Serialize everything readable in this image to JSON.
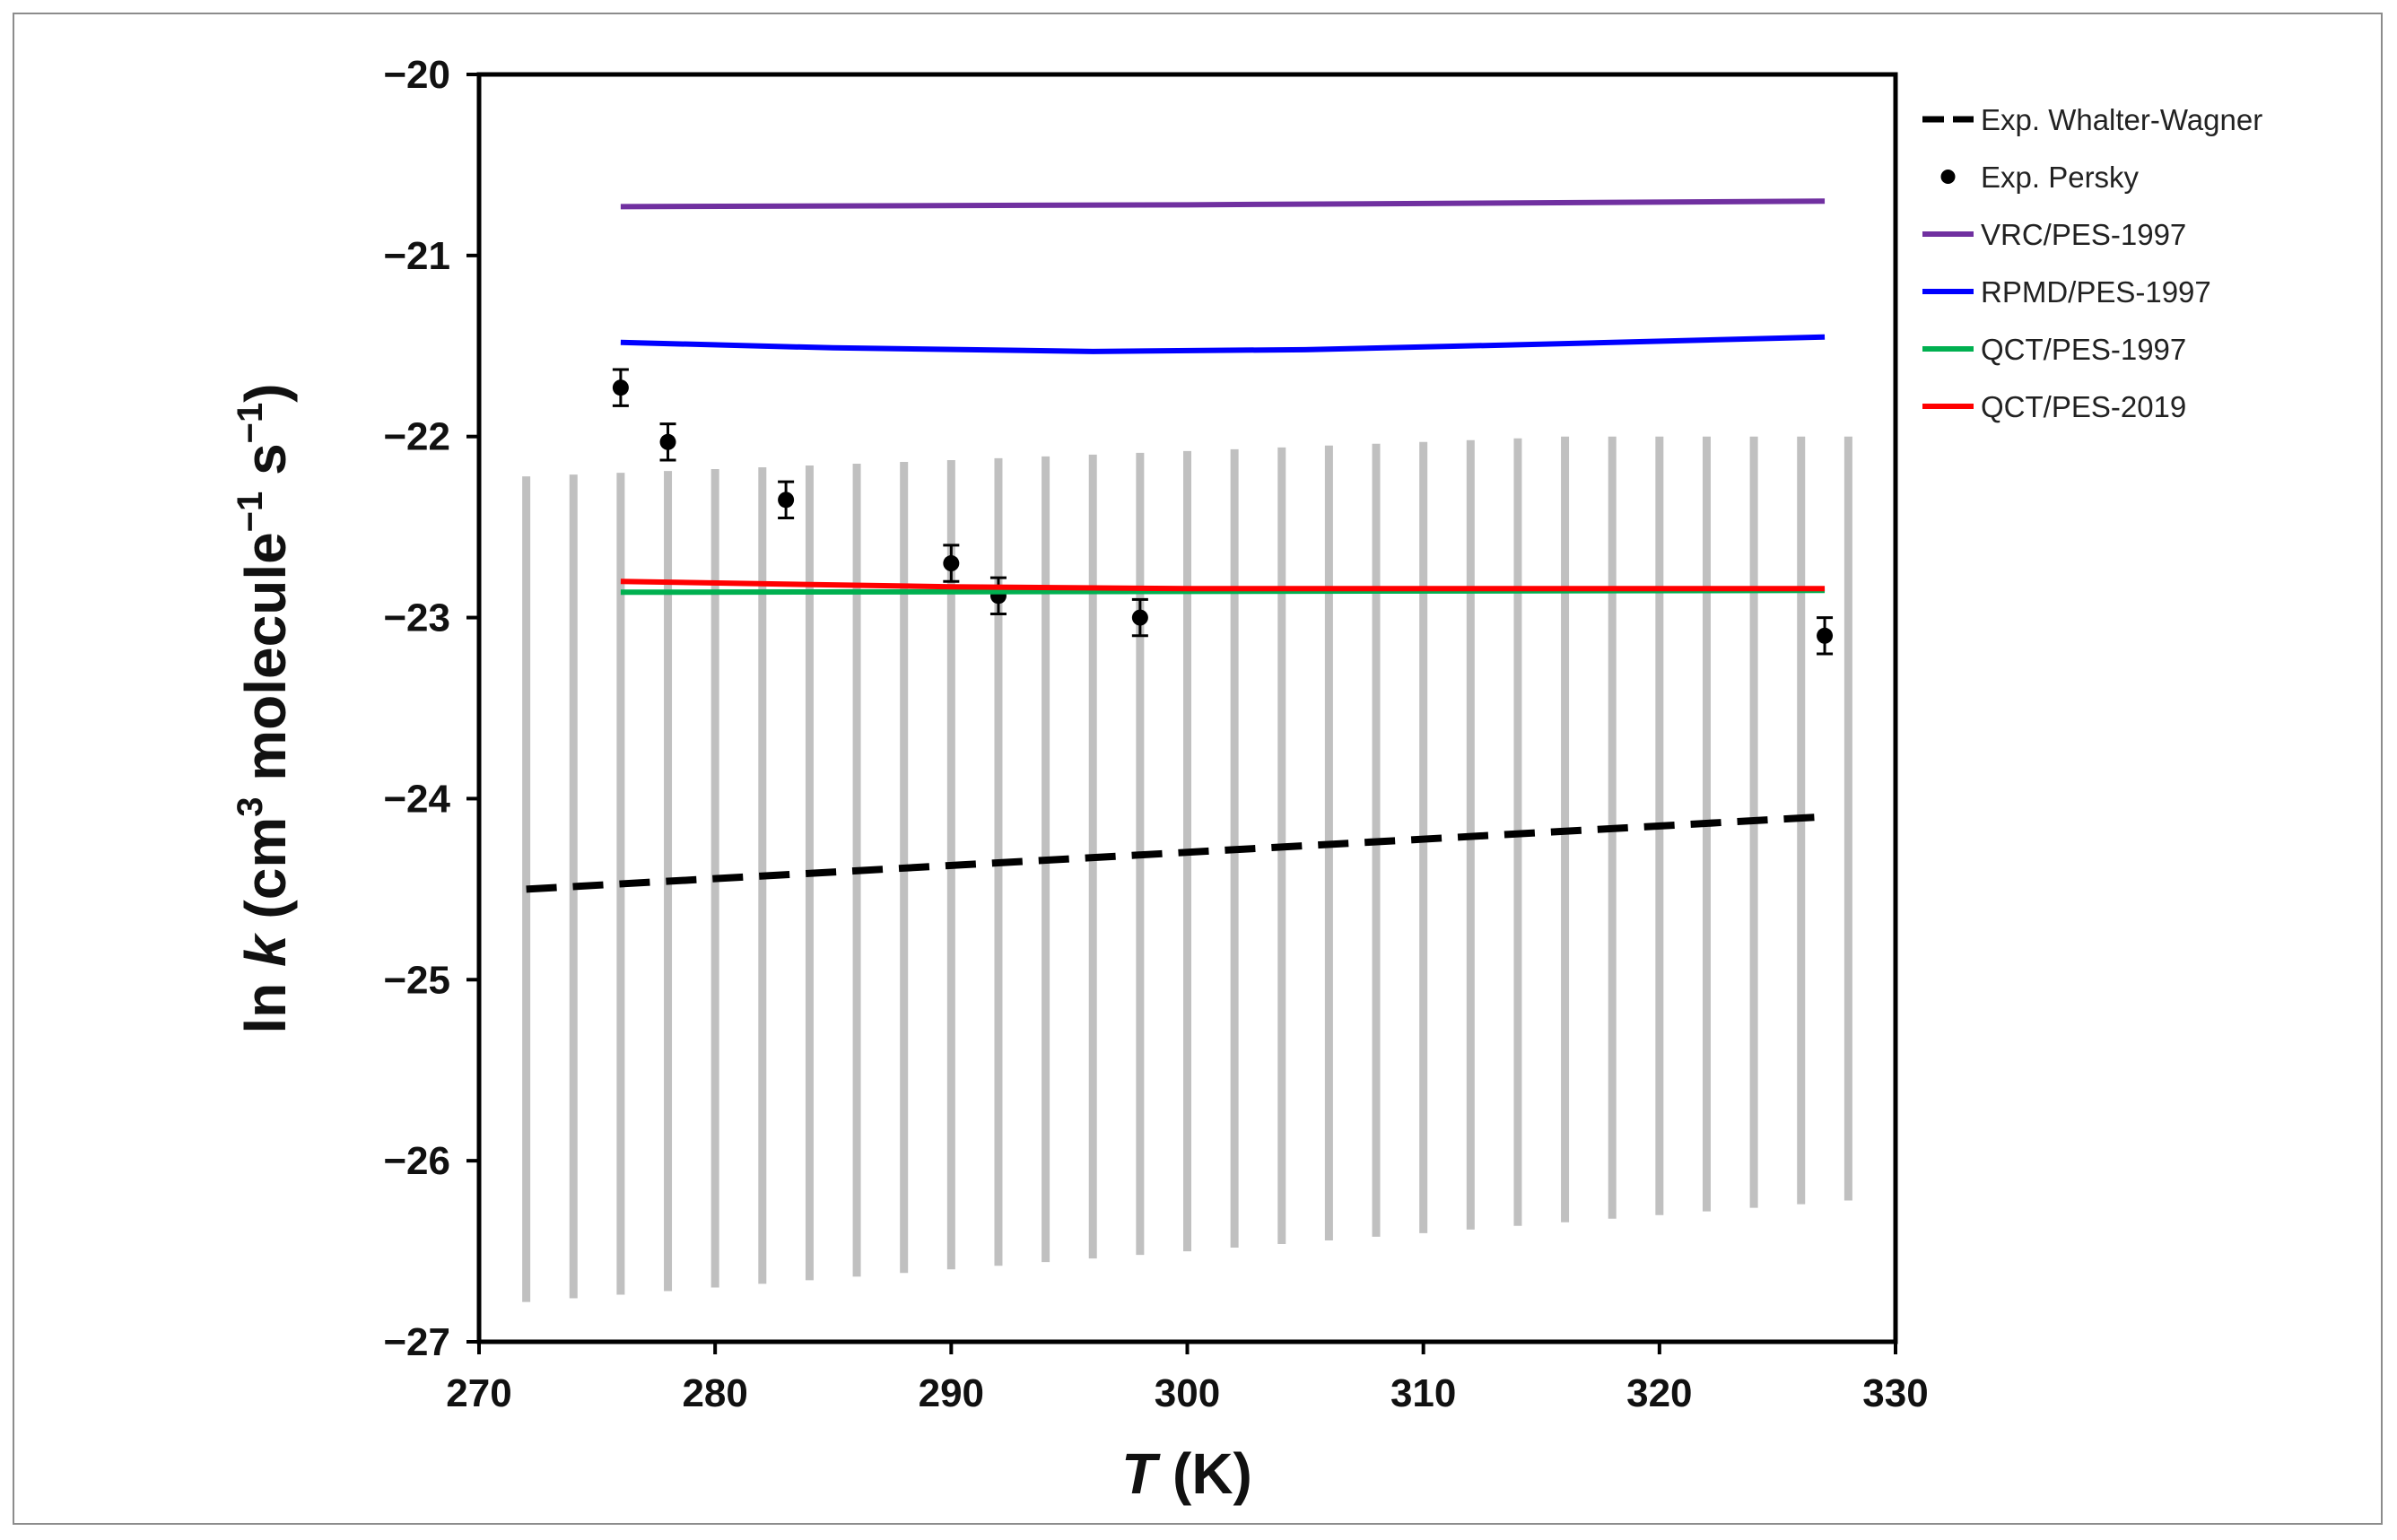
{
  "chart_data": {
    "type": "line",
    "title": "",
    "xlabel": {
      "italic": "T",
      "rest": " (K)"
    },
    "ylabel": {
      "pre": "ln ",
      "italic": "k",
      "mid1": " (cm",
      "sup1": "3",
      "mid2": " molecule",
      "sup2": "−1",
      "mid3": " s",
      "sup3": "−1",
      "post": ")"
    },
    "xlim": [
      270,
      330
    ],
    "ylim": [
      -27,
      -20
    ],
    "xticks": [
      270,
      280,
      290,
      300,
      310,
      320,
      330
    ],
    "yticks": [
      -20,
      -21,
      -22,
      -23,
      -24,
      -25,
      -26,
      -27
    ],
    "xtick_labels": [
      "270",
      "280",
      "290",
      "300",
      "310",
      "320",
      "330"
    ],
    "ytick_labels": [
      "−20",
      "−21",
      "−22",
      "−23",
      "−24",
      "−25",
      "−26",
      "−27"
    ],
    "grid": false,
    "legend_position": "top-right",
    "uncertainty_band": {
      "color": "#c0c0c0",
      "x": [
        272,
        274,
        276,
        278,
        280,
        282,
        284,
        286,
        288,
        290,
        292,
        294,
        296,
        298,
        300,
        302,
        304,
        306,
        308,
        310,
        312,
        314,
        316,
        318,
        320,
        322,
        324,
        326,
        328
      ],
      "low": [
        -26.78,
        -26.76,
        -26.74,
        -26.72,
        -26.7,
        -26.68,
        -26.66,
        -26.64,
        -26.62,
        -26.6,
        -26.58,
        -26.56,
        -26.54,
        -26.52,
        -26.5,
        -26.48,
        -26.46,
        -26.44,
        -26.42,
        -26.4,
        -26.38,
        -26.36,
        -26.34,
        -26.32,
        -26.3,
        -26.28,
        -26.26,
        -26.24,
        -26.22
      ],
      "high": [
        -22.22,
        -22.21,
        -22.2,
        -22.19,
        -22.18,
        -22.17,
        -22.16,
        -22.15,
        -22.14,
        -22.13,
        -22.12,
        -22.11,
        -22.1,
        -22.09,
        -22.08,
        -22.07,
        -22.06,
        -22.05,
        -22.04,
        -22.03,
        -22.02,
        -22.01,
        -22.0,
        -22.0,
        -22.0,
        -22.0,
        -22.0,
        -22.0,
        -22.0
      ]
    },
    "series": [
      {
        "name": "Exp. Whalter-Wagner",
        "type": "dashed-line",
        "color": "#000000",
        "x": [
          272,
          327
        ],
        "y": [
          -24.5,
          -24.1
        ]
      },
      {
        "name": "Exp. Persky",
        "type": "scatter",
        "color": "#000000",
        "x": [
          276,
          278,
          283,
          290,
          292,
          298,
          327
        ],
        "y": [
          -21.73,
          -22.03,
          -22.35,
          -22.7,
          -22.88,
          -23.0,
          -23.1
        ],
        "err": [
          0.1,
          0.1,
          0.1,
          0.1,
          0.1,
          0.1,
          0.1
        ]
      },
      {
        "name": "VRC/PES-1997",
        "type": "line",
        "color": "#7030a0",
        "x": [
          276,
          300,
          327
        ],
        "y": [
          -20.73,
          -20.72,
          -20.7
        ]
      },
      {
        "name": "RPMD/PES-1997",
        "type": "line",
        "color": "#0000ff",
        "x": [
          276,
          285,
          296,
          305,
          315,
          327
        ],
        "y": [
          -21.48,
          -21.51,
          -21.53,
          -21.52,
          -21.49,
          -21.45
        ]
      },
      {
        "name": "QCT/PES-1997",
        "type": "line",
        "color": "#00b050",
        "x": [
          276,
          327
        ],
        "y": [
          -22.86,
          -22.85
        ]
      },
      {
        "name": "QCT/PES-2019",
        "type": "line",
        "color": "#ff0000",
        "x": [
          276,
          290,
          300,
          327
        ],
        "y": [
          -22.8,
          -22.83,
          -22.84,
          -22.84
        ]
      }
    ]
  }
}
